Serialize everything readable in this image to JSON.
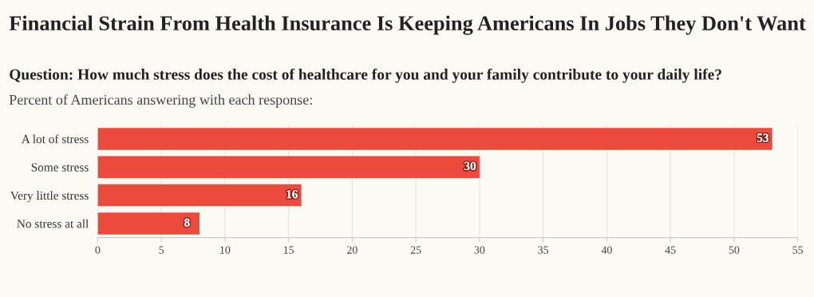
{
  "chart_data": {
    "type": "bar",
    "orientation": "horizontal",
    "title": "Financial Strain From Health Insurance Is Keeping Americans In Jobs They Don't Want",
    "subtitle": "Question: How much stress does the cost of healthcare for you and your family contribute to your daily life?",
    "annotations": [
      "Percent of Americans answering with each response:"
    ],
    "categories": [
      "A lot of stress",
      "Some stress",
      "Very little stress",
      "No stress at all"
    ],
    "values": [
      53,
      30,
      16,
      8
    ],
    "color": "#ec4a3c",
    "xlim": [
      0,
      55
    ],
    "xticks": [
      0,
      5,
      10,
      15,
      20,
      25,
      30,
      35,
      40,
      45,
      50,
      55
    ],
    "grid": "x",
    "data_labels": true
  }
}
